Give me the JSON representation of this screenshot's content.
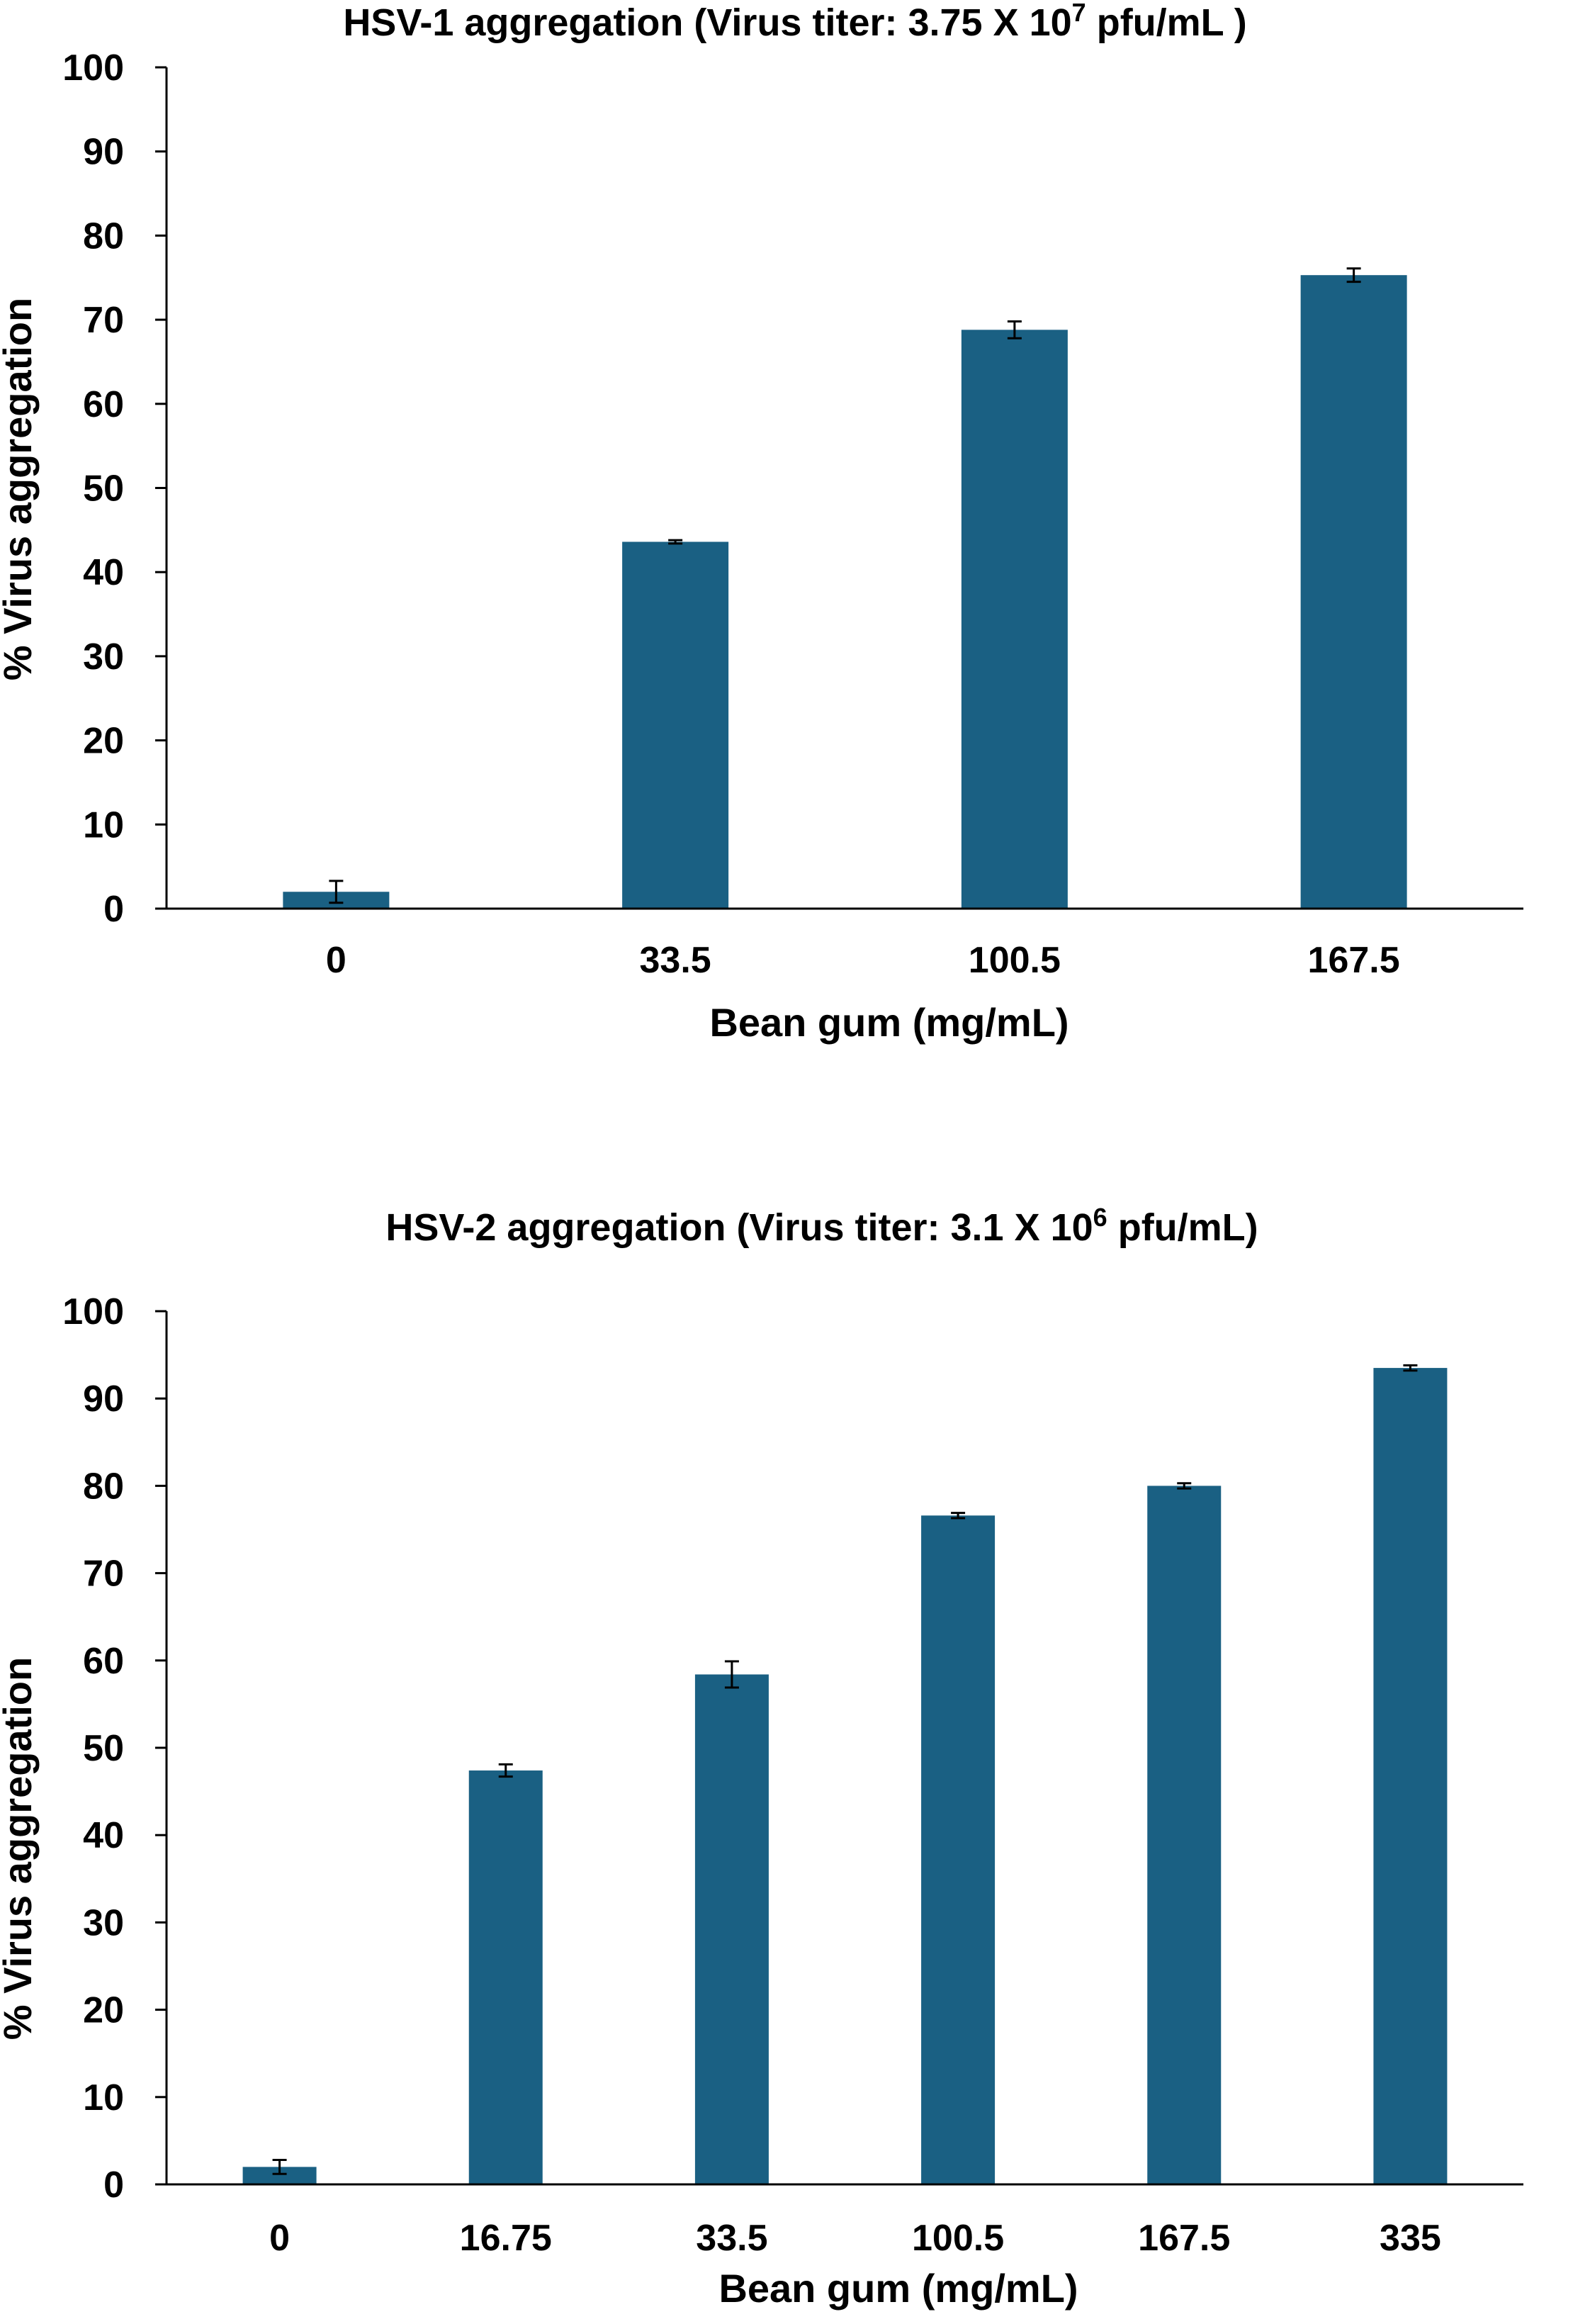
{
  "chart_data": [
    {
      "type": "bar",
      "title_parts": {
        "prefix": "HSV-1 aggregation (Virus titer: 3.75 X 10",
        "exponent": "7",
        "suffix": " pfu/mL )"
      },
      "xlabel": "Bean gum (mg/mL)",
      "ylabel": "% Virus aggregation",
      "ylim": [
        0,
        100
      ],
      "yticks": [
        "0",
        "10",
        "20",
        "30",
        "40",
        "50",
        "60",
        "70",
        "80",
        "90",
        "100"
      ],
      "categories": [
        "0",
        "33.5",
        "100.5",
        "167.5"
      ],
      "values": [
        2.0,
        43.6,
        68.8,
        75.3
      ],
      "errors": [
        1.3,
        0.2,
        1.0,
        0.8
      ],
      "bar_color": "#1a6083",
      "grid": false
    },
    {
      "type": "bar",
      "title_parts": {
        "prefix": "HSV-2 aggregation (Virus titer: 3.1 X 10",
        "exponent": "6",
        "suffix": " pfu/mL)"
      },
      "xlabel": "Bean gum (mg/mL)",
      "ylabel": "% Virus aggregation",
      "ylim": [
        0,
        100
      ],
      "yticks": [
        "0",
        "10",
        "20",
        "30",
        "40",
        "50",
        "60",
        "70",
        "80",
        "90",
        "100"
      ],
      "categories": [
        "0",
        "16.75",
        "33.5",
        "100.5",
        "167.5",
        "335"
      ],
      "values": [
        2.0,
        47.4,
        58.4,
        76.6,
        80.0,
        93.5
      ],
      "errors": [
        0.8,
        0.7,
        1.5,
        0.3,
        0.3,
        0.3
      ],
      "bar_color": "#1a6083",
      "grid": false
    }
  ]
}
